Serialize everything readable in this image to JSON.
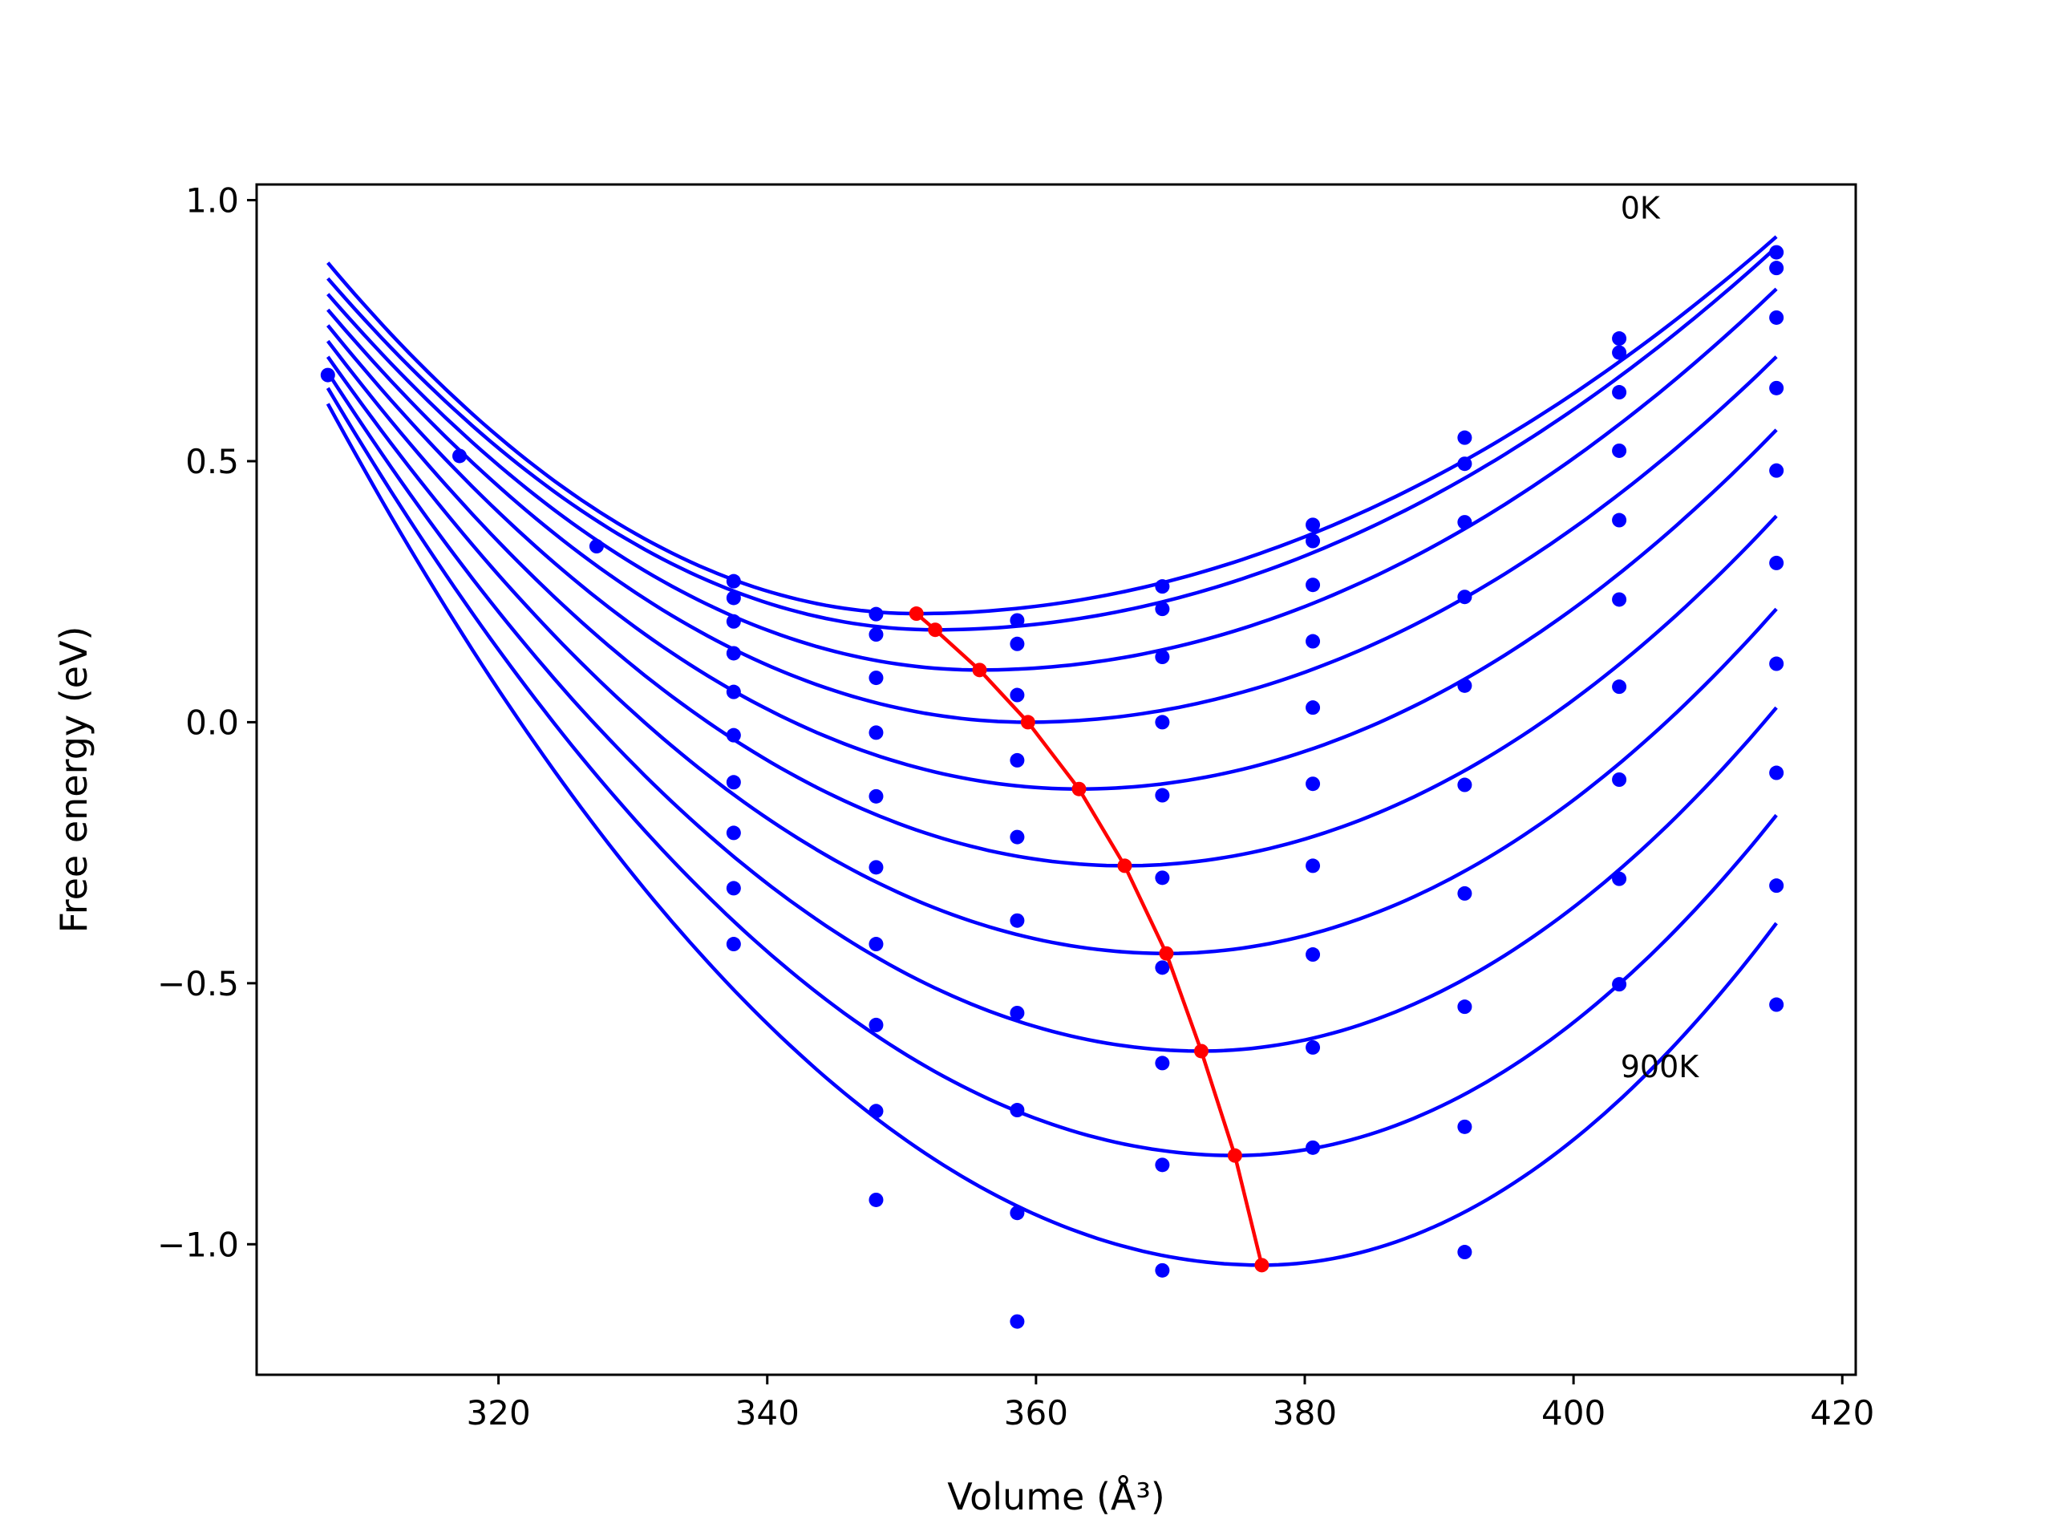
{
  "chart_data": {
    "type": "scatter",
    "title": "",
    "xlabel": "Volume (Å³)",
    "ylabel": "Free energy (eV)",
    "xlim": [
      302,
      421
    ],
    "ylim": [
      -1.25,
      1.03
    ],
    "xticks": [
      320,
      340,
      360,
      380,
      400,
      420
    ],
    "yticks": [
      -1.0,
      -0.5,
      0.0,
      0.5,
      1.0
    ],
    "grid": false,
    "legend": "none",
    "colors": {
      "data": "#0000ff",
      "minimum_path": "#ff0000",
      "axes": "#000000"
    },
    "annotations": [
      {
        "text": "0K",
        "x": 403.5,
        "y": 0.965
      },
      {
        "text": "900K",
        "x": 403.5,
        "y": -0.68
      }
    ],
    "x_data": [
      307.3,
      317.1,
      327.3,
      337.5,
      348.1,
      358.6,
      369.4,
      380.6,
      391.9,
      403.4,
      415.1
    ],
    "isotherms": [
      {
        "points": [
          0.665,
          0.51,
          0.337,
          0.27,
          0.207,
          0.195,
          0.26,
          0.378,
          0.545,
          0.735,
          0.9
        ],
        "fit": {
          "v0": 351.1,
          "e0": 0.208,
          "left": 0.88,
          "right": 0.93
        }
      },
      {
        "points": [
          null,
          null,
          null,
          0.238,
          0.168,
          0.15,
          0.217,
          0.347,
          0.495,
          0.708,
          0.87
        ],
        "fit": {
          "v0": 352.5,
          "e0": 0.177,
          "left": 0.85,
          "right": 0.91
        }
      },
      {
        "points": [
          null,
          null,
          null,
          0.193,
          0.085,
          0.052,
          0.125,
          0.263,
          0.383,
          0.632,
          0.775
        ],
        "fit": {
          "v0": 355.8,
          "e0": 0.1,
          "left": 0.82,
          "right": 0.83
        }
      },
      {
        "points": [
          null,
          null,
          null,
          0.132,
          -0.02,
          -0.073,
          0.0,
          0.155,
          0.24,
          0.52,
          0.64
        ],
        "fit": {
          "v0": 359.4,
          "e0": 0.0,
          "left": 0.79,
          "right": 0.7
        }
      },
      {
        "points": [
          null,
          null,
          null,
          0.058,
          -0.142,
          -0.22,
          -0.14,
          0.028,
          0.07,
          0.387,
          0.482
        ],
        "fit": {
          "v0": 363.2,
          "e0": -0.128,
          "left": 0.76,
          "right": 0.56
        }
      },
      {
        "points": [
          null,
          null,
          null,
          -0.025,
          -0.278,
          -0.38,
          -0.298,
          -0.118,
          -0.12,
          0.235,
          0.305
        ],
        "fit": {
          "v0": 366.6,
          "e0": -0.275,
          "left": 0.73,
          "right": 0.395
        }
      },
      {
        "points": [
          null,
          null,
          null,
          -0.115,
          -0.425,
          -0.557,
          -0.47,
          -0.275,
          -0.328,
          0.068,
          0.112
        ],
        "fit": {
          "v0": 369.7,
          "e0": -0.443,
          "left": 0.7,
          "right": 0.217
        }
      },
      {
        "points": [
          null,
          null,
          null,
          -0.212,
          -0.58,
          -0.743,
          -0.653,
          -0.445,
          -0.545,
          -0.11,
          -0.097
        ],
        "fit": {
          "v0": 372.3,
          "e0": -0.63,
          "left": 0.67,
          "right": 0.028
        }
      },
      {
        "points": [
          null,
          null,
          null,
          -0.318,
          -0.745,
          -0.94,
          -0.848,
          -0.623,
          -0.775,
          -0.3,
          -0.313
        ],
        "fit": {
          "v0": 374.8,
          "e0": -0.83,
          "left": 0.64,
          "right": -0.178
        }
      },
      {
        "points": [
          null,
          null,
          null,
          -0.425,
          -0.915,
          -1.148,
          -1.05,
          -0.815,
          -1.015,
          -0.502,
          -0.541
        ],
        "fit": {
          "v0": 376.8,
          "e0": -1.04,
          "left": 0.61,
          "right": -0.385
        }
      }
    ],
    "minimum_path": {
      "x": [
        351.1,
        352.5,
        355.8,
        359.4,
        363.2,
        366.6,
        369.7,
        372.3,
        374.8,
        376.8
      ],
      "y": [
        0.208,
        0.177,
        0.1,
        0.0,
        -0.128,
        -0.275,
        -0.443,
        -0.63,
        -0.83,
        -1.04
      ]
    }
  }
}
